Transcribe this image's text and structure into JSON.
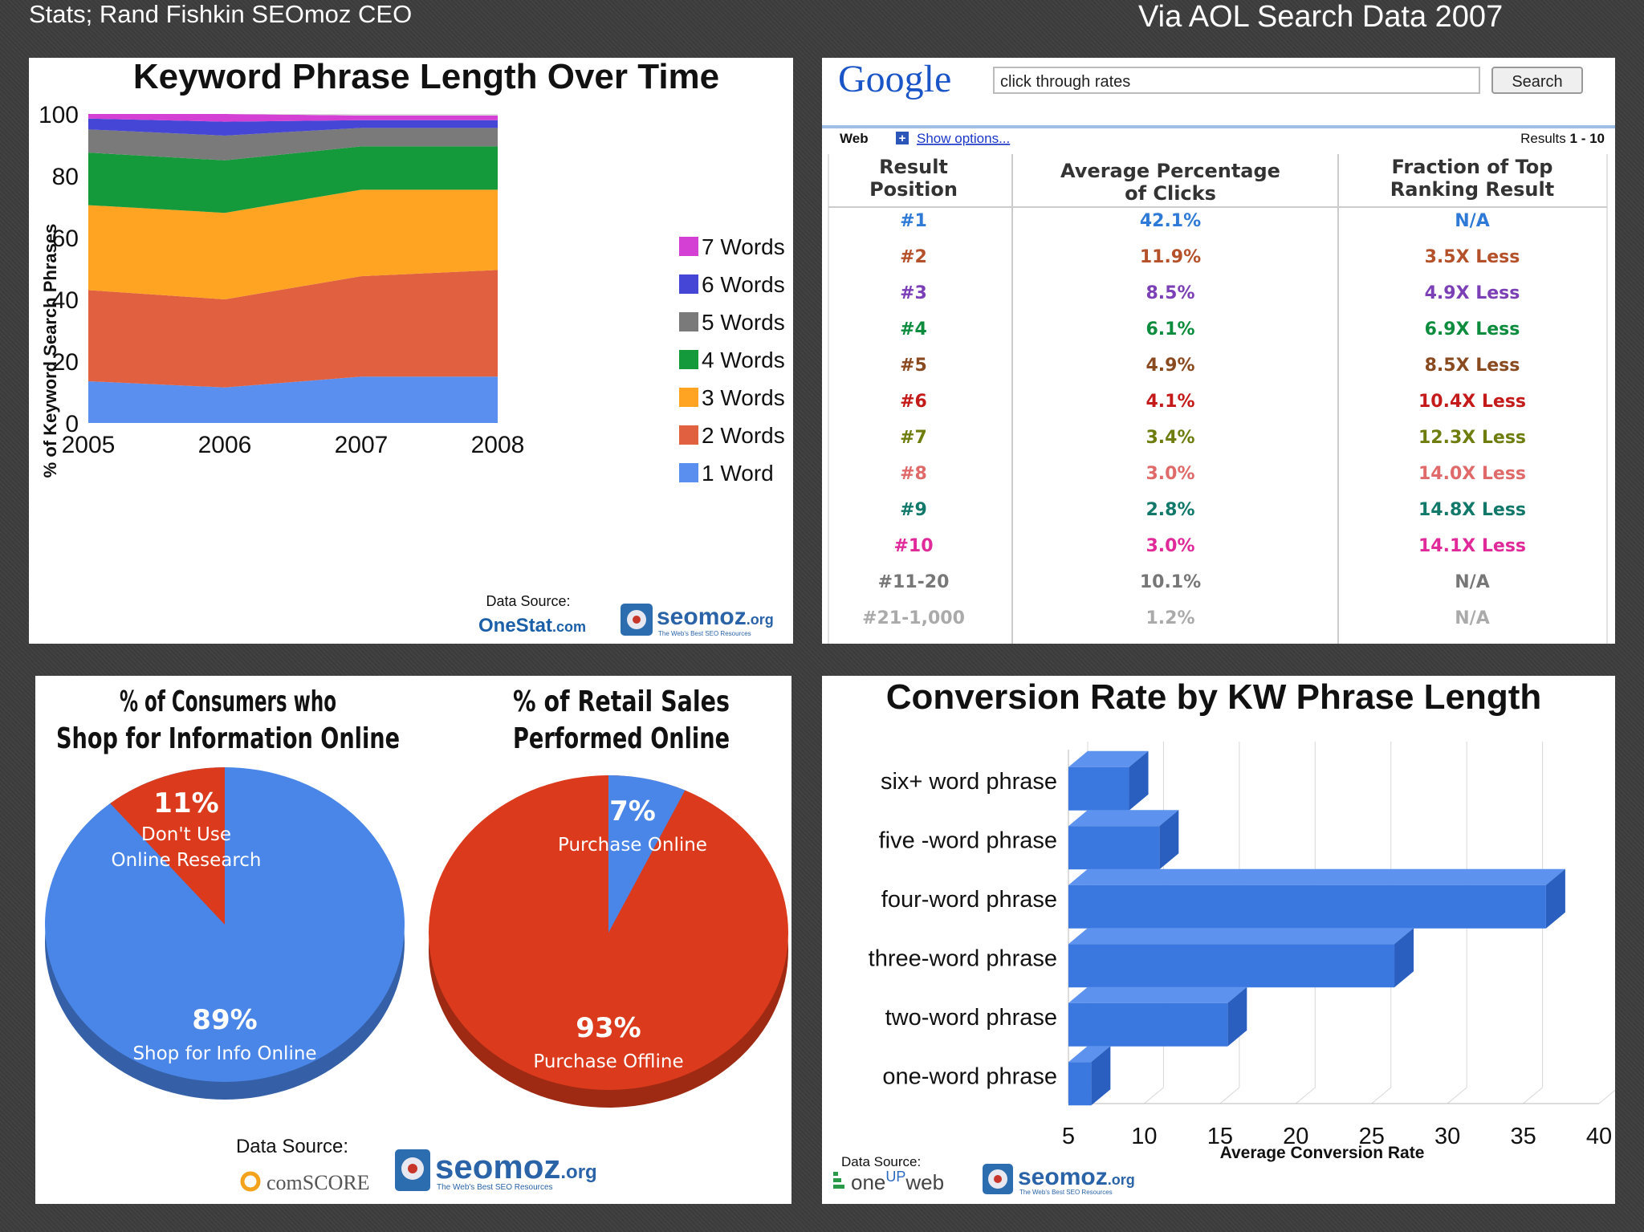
{
  "header": {
    "left": "Stats; Rand Fishkin SEOmoz CEO",
    "right": "Via AOL Search Data 2007"
  },
  "colors": {
    "blue": "#4a86e8",
    "red": "#db3a1c",
    "orange": "#ffa422",
    "green": "#149a3a",
    "gray": "#7a7a7a",
    "indigo": "#4646d6",
    "magenta": "#d43fd4"
  },
  "source_labels": {
    "data_source": "Data Source:",
    "data_source_1": "Data Source:",
    "data_source_2": "Data Source:",
    "data_source_3": "Data Source:",
    "seomoz": "seomoz",
    "seomoz_org": ".org",
    "seomoz_tagline": "The Web's Best SEO Resources",
    "onestat": "OneStat",
    "onestat_com": ".com",
    "comscore": "comSCORE",
    "oneupweb_one": "one",
    "oneupweb_up": "UP",
    "oneupweb_web": "web"
  },
  "chart_data": [
    {
      "type": "area",
      "stacked": true,
      "title": "Keyword Phrase Length Over Time",
      "ylabel": "% of Keyword Search Phrases",
      "xlabel": "",
      "x": [
        "2005",
        "2006",
        "2007",
        "2008"
      ],
      "ylim": [
        0,
        100
      ],
      "yticks": [
        0,
        20,
        40,
        60,
        80,
        100
      ],
      "series": [
        {
          "name": "1 Word",
          "color": "#5b8fef",
          "values": [
            13.5,
            11.5,
            15,
            15
          ]
        },
        {
          "name": "2 Words",
          "color": "#e0603f",
          "values": [
            29.5,
            28.5,
            32.5,
            34.5
          ]
        },
        {
          "name": "3 Words",
          "color": "#ffa422",
          "values": [
            27.5,
            28,
            28,
            26
          ]
        },
        {
          "name": "4 Words",
          "color": "#149a3a",
          "values": [
            17,
            17,
            14,
            14
          ]
        },
        {
          "name": "5 Words",
          "color": "#7a7a7a",
          "values": [
            7.5,
            8,
            6,
            6
          ]
        },
        {
          "name": "6 Words",
          "color": "#4646d6",
          "values": [
            3.5,
            4.5,
            2.5,
            2.5
          ]
        },
        {
          "name": "7 Words",
          "color": "#d43fd4",
          "values": [
            1.5,
            2.5,
            1.5,
            1.5
          ]
        }
      ],
      "legend": "right"
    },
    {
      "type": "table",
      "search": {
        "logo": "Google",
        "query": "click through rates",
        "button": "Search"
      },
      "subbar": {
        "web": "Web",
        "show_options": "Show options...",
        "results_prefix": "Results ",
        "results_range": "1 - 10"
      },
      "columns": [
        "Result Position",
        "Average Percentage of Clicks",
        "Fraction of Top Ranking Result"
      ],
      "column_lines": [
        [
          "Result",
          "Position"
        ],
        [
          "Average Percentage",
          "of Clicks"
        ],
        [
          "Fraction of Top",
          "Ranking Result"
        ]
      ],
      "rows": [
        {
          "position": "#1",
          "pct": "42.1%",
          "fraction": "N/A",
          "color": "#2e7ad6"
        },
        {
          "position": "#2",
          "pct": "11.9%",
          "fraction": "3.5X Less",
          "color": "#b4512a"
        },
        {
          "position": "#3",
          "pct": "8.5%",
          "fraction": "4.9X Less",
          "color": "#7b3fb6"
        },
        {
          "position": "#4",
          "pct": "6.1%",
          "fraction": "6.9X Less",
          "color": "#0d8c3e"
        },
        {
          "position": "#5",
          "pct": "4.9%",
          "fraction": "8.5X Less",
          "color": "#8a4a1f"
        },
        {
          "position": "#6",
          "pct": "4.1%",
          "fraction": "10.4X Less",
          "color": "#c41a1a"
        },
        {
          "position": "#7",
          "pct": "3.4%",
          "fraction": "12.3X Less",
          "color": "#6e7d0e"
        },
        {
          "position": "#8",
          "pct": "3.0%",
          "fraction": "14.0X Less",
          "color": "#e06a6a"
        },
        {
          "position": "#9",
          "pct": "2.8%",
          "fraction": "14.8X Less",
          "color": "#11786a"
        },
        {
          "position": "#10",
          "pct": "3.0%",
          "fraction": "14.1X Less",
          "color": "#e12a9a"
        },
        {
          "position": "#11-20",
          "pct": "10.1%",
          "fraction": "N/A",
          "color": "#777777"
        },
        {
          "position": "#21-1,000",
          "pct": "1.2%",
          "fraction": "N/A",
          "color": "#aaaaaa"
        }
      ]
    },
    {
      "type": "pie",
      "title": "% of Consumers who Shop for Information Online",
      "title_lines": [
        "% of Consumers who",
        "Shop for Information Online"
      ],
      "slices": [
        {
          "pct": "89%",
          "label": "Shop for Info Online",
          "value": 89,
          "color": "#4a86e8"
        },
        {
          "pct": "11%",
          "label_lines": [
            "Don't Use",
            "Online Research"
          ],
          "value": 11,
          "color": "#db3a1c"
        }
      ]
    },
    {
      "type": "pie",
      "title": "% of Retail Sales Performed Online",
      "title_lines": [
        "% of Retail Sales",
        "Performed Online"
      ],
      "slices": [
        {
          "pct": "7%",
          "label": "Purchase Online",
          "value": 7,
          "color": "#4a86e8"
        },
        {
          "pct": "93%",
          "label": "Purchase Offline",
          "value": 93,
          "color": "#db3a1c"
        }
      ]
    },
    {
      "type": "bar",
      "orientation": "horizontal",
      "title": "Conversion Rate by KW Phrase Length",
      "xlabel": "Average Conversion Rate",
      "xlim": [
        5,
        40
      ],
      "xticks": [
        5,
        10,
        15,
        20,
        25,
        30,
        35,
        40
      ],
      "categories": [
        "six+ word phrase",
        "five -word phrase",
        "four-word phrase",
        "three-word phrase",
        "two-word phrase",
        "one-word phrase"
      ],
      "values": [
        9.0,
        11.0,
        36.5,
        26.5,
        15.5,
        6.5
      ],
      "color": "#3a78e0"
    }
  ]
}
